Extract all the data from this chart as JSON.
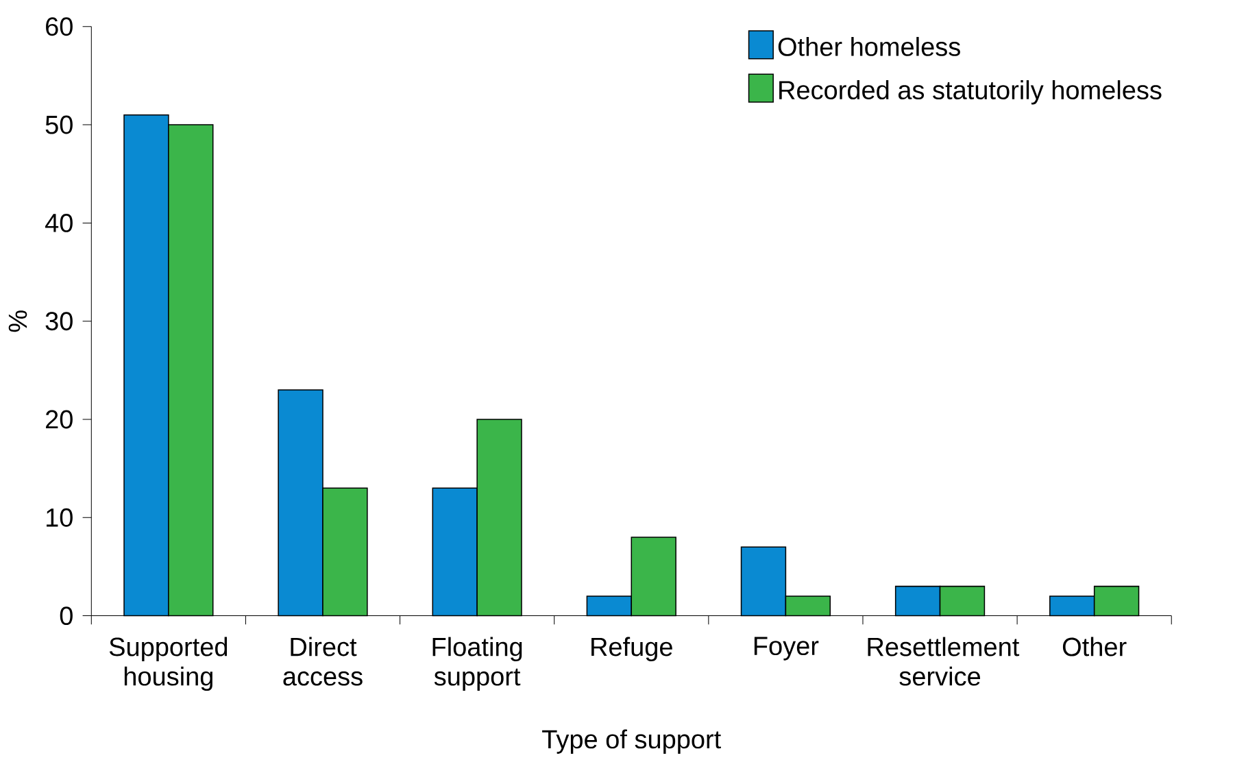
{
  "chart_data": {
    "type": "bar",
    "xlabel": "Type of support",
    "ylabel": "%",
    "categories": [
      "Supported housing",
      "Direct access",
      "Floating support",
      "Refuge",
      "Foyer",
      "Resettlement service",
      "Other"
    ],
    "series": [
      {
        "name": "Other homeless",
        "color": "#0a8ad2",
        "values": [
          51,
          23,
          13,
          2,
          7,
          3,
          2
        ]
      },
      {
        "name": "Recorded as statutorily homeless",
        "color": "#3bb54a",
        "values": [
          50,
          13,
          20,
          8,
          2,
          3,
          3
        ]
      }
    ],
    "ylim": [
      0,
      60
    ],
    "yticks": [
      0,
      10,
      20,
      30,
      40,
      50,
      60
    ],
    "grid": false,
    "legend": "top right"
  }
}
